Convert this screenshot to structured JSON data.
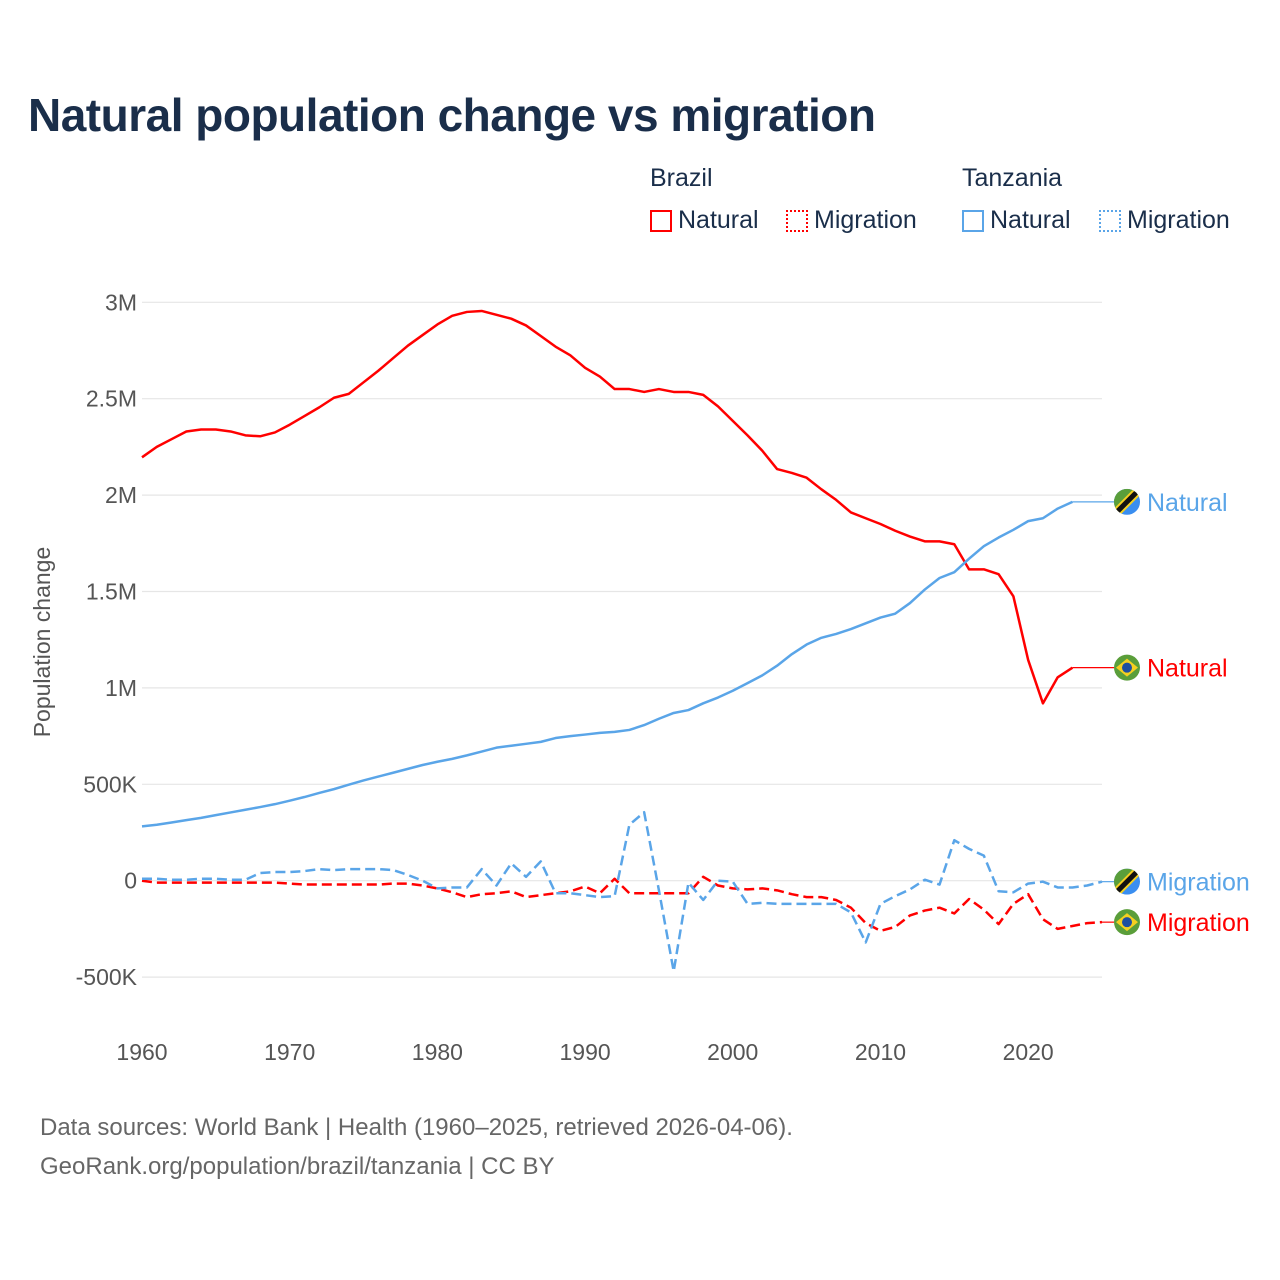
{
  "title": "Natural population change vs migration",
  "legend": {
    "groups": [
      {
        "name": "Brazil",
        "items": [
          "Natural",
          "Migration"
        ],
        "color": "#ff0000"
      },
      {
        "name": "Tanzania",
        "items": [
          "Natural",
          "Migration"
        ],
        "color": "#5aa5e8"
      }
    ]
  },
  "footer": {
    "line1": "Data sources: World Bank | Health (1960–2025, retrieved 2026-04-06).",
    "line2": "GeoRank.org/population/brazil/tanzania | CC BY"
  },
  "chart_data": {
    "type": "line",
    "title": "Natural population change vs migration",
    "xlabel": "",
    "ylabel": "Population change",
    "xlim": [
      1960,
      2025
    ],
    "ylim": [
      -500000,
      3000000
    ],
    "x_ticks": [
      "1960",
      "1970",
      "1980",
      "1990",
      "2000",
      "2010",
      "2020"
    ],
    "x_tick_values": [
      1960,
      1970,
      1980,
      1990,
      2000,
      2010,
      2020
    ],
    "y_ticks": [
      "-500K",
      "0",
      "500K",
      "1M",
      "1.5M",
      "2M",
      "2.5M",
      "3M"
    ],
    "y_tick_values": [
      -500000,
      0,
      500000,
      1000000,
      1500000,
      2000000,
      2500000,
      3000000
    ],
    "grid": true,
    "end_labels": [
      "Natural",
      "Natural",
      "Migration",
      "Migration"
    ],
    "series": [
      {
        "name": "Brazil Natural",
        "country": "Brazil",
        "kind": "Natural",
        "color": "#ff0000",
        "dash": false,
        "start": 1960,
        "values_k": [
          2196,
          2250,
          2290,
          2330,
          2340,
          2340,
          2330,
          2310,
          2305,
          2325,
          2365,
          2410,
          2455,
          2505,
          2525,
          2585,
          2645,
          2710,
          2775,
          2830,
          2885,
          2930,
          2950,
          2955,
          2935,
          2915,
          2880,
          2825,
          2770,
          2725,
          2660,
          2615,
          2550,
          2550,
          2535,
          2550,
          2535,
          2535,
          2520,
          2460,
          2385,
          2310,
          2230,
          2135,
          2115,
          2090,
          2030,
          1975,
          1910,
          1880,
          1850,
          1815,
          1785,
          1760,
          1760,
          1745,
          1615,
          1615,
          1590,
          1475,
          1145,
          920,
          1055,
          1105
        ]
      },
      {
        "name": "Tanzania Natural",
        "country": "Tanzania",
        "kind": "Natural",
        "color": "#5aa5e8",
        "dash": false,
        "start": 1960,
        "values_k": [
          282,
          290,
          302,
          314,
          326,
          340,
          354,
          368,
          382,
          397,
          415,
          434,
          455,
          475,
          498,
          520,
          540,
          560,
          580,
          600,
          617,
          632,
          650,
          670,
          690,
          700,
          710,
          720,
          740,
          750,
          758,
          767,
          772,
          782,
          807,
          840,
          870,
          885,
          920,
          950,
          985,
          1025,
          1065,
          1115,
          1175,
          1225,
          1260,
          1280,
          1305,
          1335,
          1365,
          1385,
          1440,
          1510,
          1570,
          1600,
          1670,
          1735,
          1780,
          1820,
          1865,
          1880,
          1930,
          1965
        ]
      },
      {
        "name": "Brazil Migration",
        "country": "Brazil",
        "kind": "Migration",
        "color": "#ff0000",
        "dash": true,
        "start": 1960,
        "values_k": [
          0,
          -10,
          -10,
          -10,
          -10,
          -10,
          -10,
          -10,
          -10,
          -10,
          -15,
          -20,
          -20,
          -20,
          -20,
          -20,
          -20,
          -15,
          -15,
          -25,
          -40,
          -60,
          -85,
          -70,
          -65,
          -55,
          -85,
          -75,
          -65,
          -55,
          -30,
          -65,
          10,
          -65,
          -65,
          -65,
          -65,
          -65,
          20,
          -25,
          -40,
          -45,
          -40,
          -50,
          -70,
          -85,
          -85,
          -100,
          -140,
          -220,
          -260,
          -240,
          -180,
          -155,
          -140,
          -170,
          -95,
          -150,
          -225,
          -120,
          -70,
          -200,
          -250,
          -235,
          -220,
          -215
        ]
      },
      {
        "name": "Tanzania Migration",
        "country": "Tanzania",
        "kind": "Migration",
        "color": "#5aa5e8",
        "dash": true,
        "start": 1960,
        "values_k": [
          10,
          10,
          5,
          5,
          10,
          10,
          5,
          5,
          40,
          45,
          45,
          50,
          60,
          55,
          60,
          60,
          60,
          55,
          30,
          0,
          -40,
          -35,
          -35,
          60,
          -25,
          90,
          20,
          100,
          -65,
          -65,
          -75,
          -85,
          -80,
          290,
          355,
          -50,
          -470,
          -10,
          -100,
          0,
          -5,
          -120,
          -115,
          -120,
          -120,
          -120,
          -120,
          -120,
          -165,
          -320,
          -120,
          -80,
          -45,
          5,
          -20,
          210,
          165,
          130,
          -55,
          -60,
          -15,
          -5,
          -35,
          -35,
          -25,
          -5
        ]
      }
    ]
  }
}
